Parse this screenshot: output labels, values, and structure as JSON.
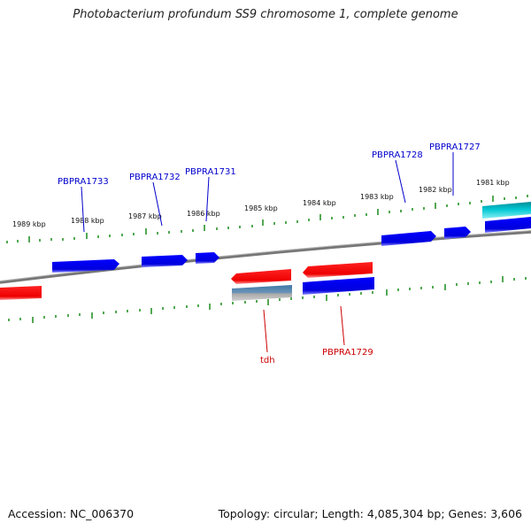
{
  "title": "Photobacterium profundum SS9 chromosome 1, complete genome",
  "footer": {
    "accession": "Accession: NC_006370",
    "summary": "Topology: circular; Length: 4,085,304 bp; Genes: 3,606"
  },
  "scale_labels": [
    "1989 kbp",
    "1988 kbp",
    "1987 kbp",
    "1986 kbp",
    "1985 kbp",
    "1984 kbp",
    "1983 kbp",
    "1982 kbp",
    "1981 kbp"
  ],
  "genes_top": [
    "PBPRA1733",
    "PBPRA1732",
    "PBPRA1731",
    "PBPRA1728",
    "PBPRA1727"
  ],
  "genes_bottom": [
    "tdh",
    "PBPRA1729"
  ],
  "colors": {
    "forward_gene": "#0000ee",
    "reverse_gene": "#ee0000",
    "rna_gene": "#00bbcc",
    "pseudo_gene": "#4a7fa8",
    "backbone": "#777777",
    "ticks": "#1a8a1a",
    "top_label": "#0000cc",
    "bottom_label": "#cc0000"
  }
}
